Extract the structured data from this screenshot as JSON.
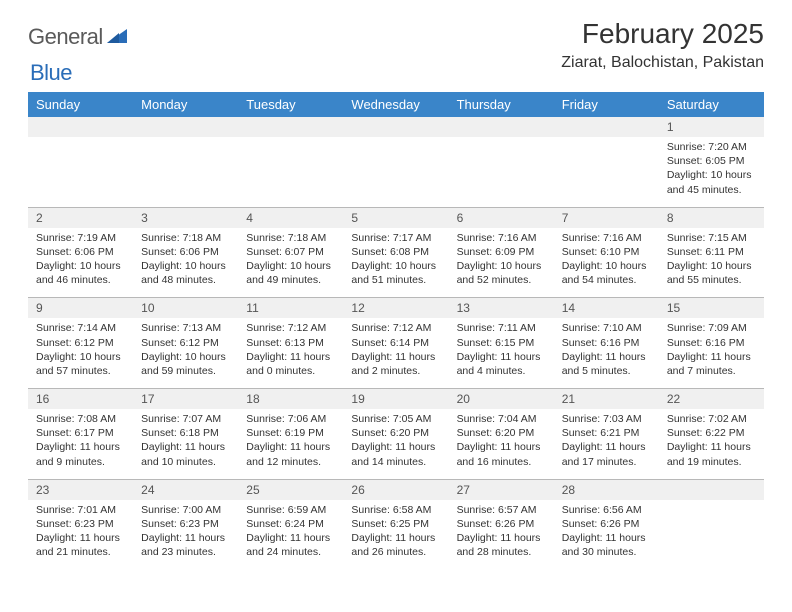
{
  "brand": {
    "part1": "General",
    "part2": "Blue"
  },
  "title": "February 2025",
  "location": "Ziarat, Balochistan, Pakistan",
  "colors": {
    "header_bg": "#3a85c9",
    "header_text": "#ffffff",
    "daynum_bg": "#f0f0f0",
    "border": "#b8b8b8",
    "brand_gray": "#5a5a5a",
    "brand_blue": "#2a6db8"
  },
  "day_headers": [
    "Sunday",
    "Monday",
    "Tuesday",
    "Wednesday",
    "Thursday",
    "Friday",
    "Saturday"
  ],
  "weeks": [
    [
      {
        "n": "",
        "d": ""
      },
      {
        "n": "",
        "d": ""
      },
      {
        "n": "",
        "d": ""
      },
      {
        "n": "",
        "d": ""
      },
      {
        "n": "",
        "d": ""
      },
      {
        "n": "",
        "d": ""
      },
      {
        "n": "1",
        "d": "Sunrise: 7:20 AM\nSunset: 6:05 PM\nDaylight: 10 hours and 45 minutes."
      }
    ],
    [
      {
        "n": "2",
        "d": "Sunrise: 7:19 AM\nSunset: 6:06 PM\nDaylight: 10 hours and 46 minutes."
      },
      {
        "n": "3",
        "d": "Sunrise: 7:18 AM\nSunset: 6:06 PM\nDaylight: 10 hours and 48 minutes."
      },
      {
        "n": "4",
        "d": "Sunrise: 7:18 AM\nSunset: 6:07 PM\nDaylight: 10 hours and 49 minutes."
      },
      {
        "n": "5",
        "d": "Sunrise: 7:17 AM\nSunset: 6:08 PM\nDaylight: 10 hours and 51 minutes."
      },
      {
        "n": "6",
        "d": "Sunrise: 7:16 AM\nSunset: 6:09 PM\nDaylight: 10 hours and 52 minutes."
      },
      {
        "n": "7",
        "d": "Sunrise: 7:16 AM\nSunset: 6:10 PM\nDaylight: 10 hours and 54 minutes."
      },
      {
        "n": "8",
        "d": "Sunrise: 7:15 AM\nSunset: 6:11 PM\nDaylight: 10 hours and 55 minutes."
      }
    ],
    [
      {
        "n": "9",
        "d": "Sunrise: 7:14 AM\nSunset: 6:12 PM\nDaylight: 10 hours and 57 minutes."
      },
      {
        "n": "10",
        "d": "Sunrise: 7:13 AM\nSunset: 6:12 PM\nDaylight: 10 hours and 59 minutes."
      },
      {
        "n": "11",
        "d": "Sunrise: 7:12 AM\nSunset: 6:13 PM\nDaylight: 11 hours and 0 minutes."
      },
      {
        "n": "12",
        "d": "Sunrise: 7:12 AM\nSunset: 6:14 PM\nDaylight: 11 hours and 2 minutes."
      },
      {
        "n": "13",
        "d": "Sunrise: 7:11 AM\nSunset: 6:15 PM\nDaylight: 11 hours and 4 minutes."
      },
      {
        "n": "14",
        "d": "Sunrise: 7:10 AM\nSunset: 6:16 PM\nDaylight: 11 hours and 5 minutes."
      },
      {
        "n": "15",
        "d": "Sunrise: 7:09 AM\nSunset: 6:16 PM\nDaylight: 11 hours and 7 minutes."
      }
    ],
    [
      {
        "n": "16",
        "d": "Sunrise: 7:08 AM\nSunset: 6:17 PM\nDaylight: 11 hours and 9 minutes."
      },
      {
        "n": "17",
        "d": "Sunrise: 7:07 AM\nSunset: 6:18 PM\nDaylight: 11 hours and 10 minutes."
      },
      {
        "n": "18",
        "d": "Sunrise: 7:06 AM\nSunset: 6:19 PM\nDaylight: 11 hours and 12 minutes."
      },
      {
        "n": "19",
        "d": "Sunrise: 7:05 AM\nSunset: 6:20 PM\nDaylight: 11 hours and 14 minutes."
      },
      {
        "n": "20",
        "d": "Sunrise: 7:04 AM\nSunset: 6:20 PM\nDaylight: 11 hours and 16 minutes."
      },
      {
        "n": "21",
        "d": "Sunrise: 7:03 AM\nSunset: 6:21 PM\nDaylight: 11 hours and 17 minutes."
      },
      {
        "n": "22",
        "d": "Sunrise: 7:02 AM\nSunset: 6:22 PM\nDaylight: 11 hours and 19 minutes."
      }
    ],
    [
      {
        "n": "23",
        "d": "Sunrise: 7:01 AM\nSunset: 6:23 PM\nDaylight: 11 hours and 21 minutes."
      },
      {
        "n": "24",
        "d": "Sunrise: 7:00 AM\nSunset: 6:23 PM\nDaylight: 11 hours and 23 minutes."
      },
      {
        "n": "25",
        "d": "Sunrise: 6:59 AM\nSunset: 6:24 PM\nDaylight: 11 hours and 24 minutes."
      },
      {
        "n": "26",
        "d": "Sunrise: 6:58 AM\nSunset: 6:25 PM\nDaylight: 11 hours and 26 minutes."
      },
      {
        "n": "27",
        "d": "Sunrise: 6:57 AM\nSunset: 6:26 PM\nDaylight: 11 hours and 28 minutes."
      },
      {
        "n": "28",
        "d": "Sunrise: 6:56 AM\nSunset: 6:26 PM\nDaylight: 11 hours and 30 minutes."
      },
      {
        "n": "",
        "d": ""
      }
    ]
  ]
}
